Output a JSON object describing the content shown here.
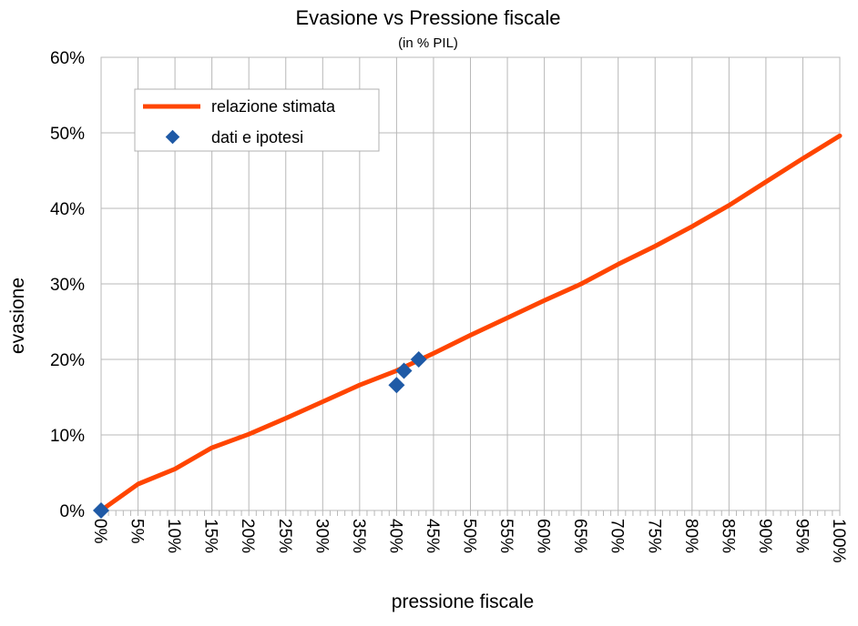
{
  "chart_data": {
    "type": "line",
    "title": "Evasione vs Pressione fiscale",
    "subtitle": "(in % PIL)",
    "xlabel": "pressione fiscale",
    "ylabel": "evasione",
    "xlim": [
      0,
      100
    ],
    "ylim": [
      0,
      60
    ],
    "grid": true,
    "legend_position": "top-left",
    "x_ticks": [
      "0%",
      "5%",
      "10%",
      "15%",
      "20%",
      "25%",
      "30%",
      "35%",
      "40%",
      "45%",
      "50%",
      "55%",
      "60%",
      "65%",
      "70%",
      "75%",
      "80%",
      "85%",
      "90%",
      "95%",
      "100%"
    ],
    "y_ticks": [
      "0%",
      "10%",
      "20%",
      "30%",
      "40%",
      "50%",
      "60%"
    ],
    "series": [
      {
        "name": "relazione stimata",
        "kind": "line",
        "color": "#ff4500",
        "x": [
          0,
          5,
          10,
          15,
          20,
          25,
          30,
          35,
          40,
          45,
          50,
          55,
          60,
          65,
          70,
          75,
          80,
          85,
          90,
          95,
          100
        ],
        "y": [
          0,
          3.5,
          5.5,
          8.3,
          10.1,
          12.2,
          14.4,
          16.6,
          18.5,
          20.8,
          23.2,
          25.5,
          27.8,
          30.0,
          32.6,
          35.0,
          37.6,
          40.4,
          43.5,
          46.6,
          49.6
        ]
      },
      {
        "name": "dati e ipotesi",
        "kind": "scatter",
        "color": "#1f5aa6",
        "x": [
          0,
          40,
          41,
          43
        ],
        "y": [
          0,
          16.6,
          18.5,
          20.0
        ]
      }
    ]
  }
}
